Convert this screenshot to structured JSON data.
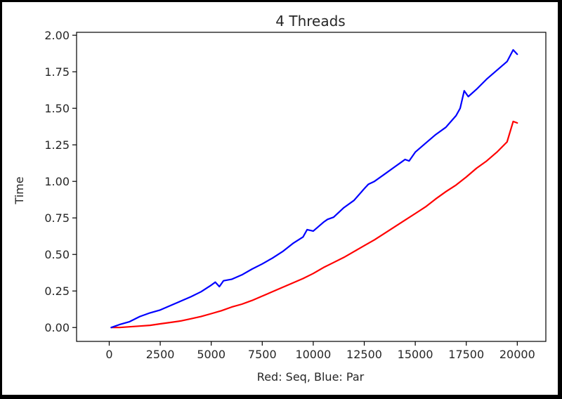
{
  "chart_data": {
    "type": "line",
    "title": "4 Threads",
    "xlabel": "Red: Seq, Blue: Par",
    "ylabel": "Time",
    "xlim": [
      -1600,
      21400
    ],
    "ylim": [
      -0.095,
      2.02
    ],
    "xticks": [
      0,
      2500,
      5000,
      7500,
      10000,
      12500,
      15000,
      17500,
      20000
    ],
    "yticks": [
      0.0,
      0.25,
      0.5,
      0.75,
      1.0,
      1.25,
      1.5,
      1.75,
      2.0
    ],
    "ytick_labels": [
      "0.00",
      "0.25",
      "0.50",
      "0.75",
      "1.00",
      "1.25",
      "1.50",
      "1.75",
      "2.00"
    ],
    "grid": false,
    "series": [
      {
        "color": "#ff0000",
        "x": [
          100,
          500,
          1000,
          1500,
          2000,
          2500,
          3000,
          3500,
          4000,
          4500,
          5000,
          5500,
          6000,
          6500,
          7000,
          7500,
          8000,
          8500,
          9000,
          9500,
          10000,
          10500,
          11000,
          11500,
          12000,
          12500,
          13000,
          13500,
          14000,
          14500,
          15000,
          15500,
          16000,
          16500,
          17000,
          17500,
          18000,
          18500,
          19000,
          19500,
          19800,
          20000
        ],
        "y": [
          0.0,
          0.0,
          0.005,
          0.01,
          0.015,
          0.025,
          0.035,
          0.045,
          0.06,
          0.075,
          0.095,
          0.115,
          0.14,
          0.16,
          0.185,
          0.215,
          0.245,
          0.275,
          0.305,
          0.335,
          0.37,
          0.41,
          0.445,
          0.48,
          0.52,
          0.56,
          0.6,
          0.645,
          0.69,
          0.735,
          0.78,
          0.825,
          0.88,
          0.93,
          0.975,
          1.03,
          1.09,
          1.14,
          1.2,
          1.27,
          1.41,
          1.4
        ]
      },
      {
        "color": "#0000ff",
        "x": [
          100,
          500,
          1000,
          1500,
          2000,
          2500,
          3000,
          3500,
          4000,
          4500,
          5000,
          5200,
          5400,
          5600,
          6000,
          6500,
          7000,
          7500,
          8000,
          8500,
          9000,
          9500,
          9700,
          10000,
          10500,
          10700,
          11000,
          11500,
          12000,
          12500,
          12700,
          13000,
          13500,
          14000,
          14300,
          14500,
          14700,
          15000,
          15500,
          16000,
          16500,
          17000,
          17200,
          17400,
          17600,
          18000,
          18500,
          19000,
          19500,
          19800,
          20000
        ],
        "y": [
          0.0,
          0.02,
          0.04,
          0.075,
          0.1,
          0.12,
          0.15,
          0.18,
          0.21,
          0.245,
          0.29,
          0.31,
          0.28,
          0.32,
          0.33,
          0.36,
          0.4,
          0.435,
          0.475,
          0.52,
          0.575,
          0.62,
          0.67,
          0.66,
          0.72,
          0.74,
          0.755,
          0.82,
          0.87,
          0.95,
          0.98,
          1.0,
          1.05,
          1.1,
          1.13,
          1.15,
          1.14,
          1.2,
          1.26,
          1.32,
          1.37,
          1.45,
          1.5,
          1.62,
          1.58,
          1.63,
          1.7,
          1.76,
          1.82,
          1.9,
          1.87
        ]
      }
    ]
  }
}
